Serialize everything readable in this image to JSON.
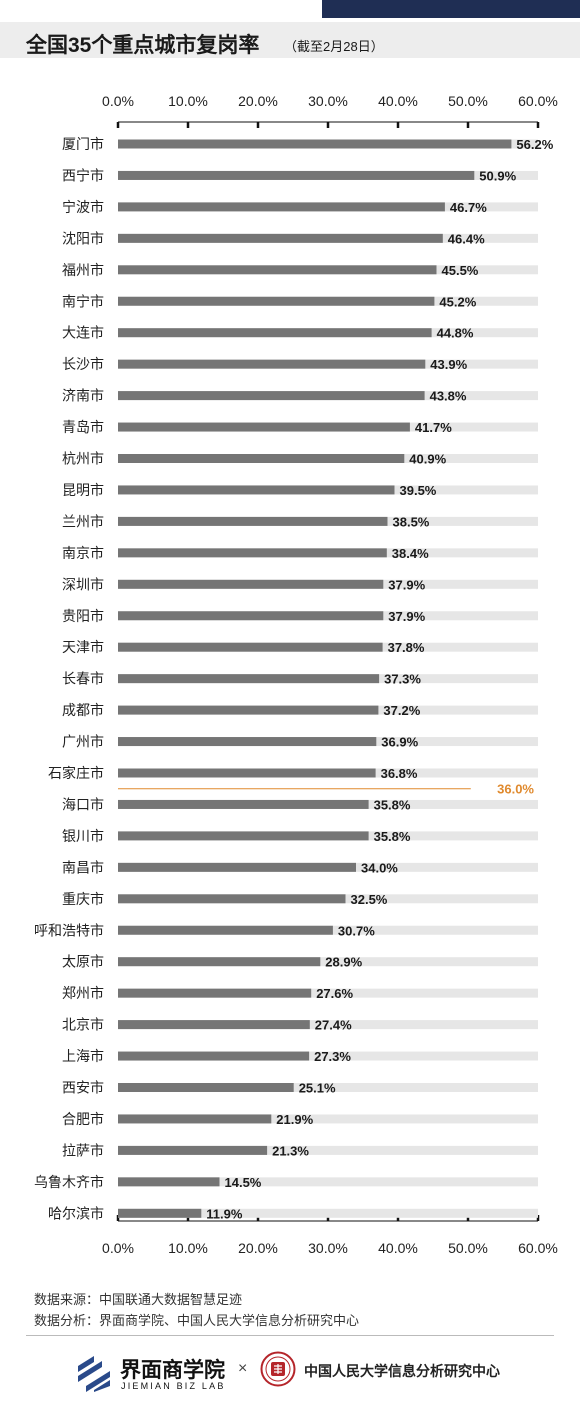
{
  "header": {
    "title": "全国35个重点城市复岗率",
    "subtitle": "（截至2月28日）"
  },
  "chart_data": {
    "type": "bar",
    "orientation": "horizontal",
    "categories": [
      "厦门市",
      "西宁市",
      "宁波市",
      "沈阳市",
      "福州市",
      "南宁市",
      "大连市",
      "长沙市",
      "济南市",
      "青岛市",
      "杭州市",
      "昆明市",
      "兰州市",
      "南京市",
      "深圳市",
      "贵阳市",
      "天津市",
      "长春市",
      "成都市",
      "广州市",
      "石家庄市",
      "海口市",
      "银川市",
      "南昌市",
      "重庆市",
      "呼和浩特市",
      "太原市",
      "郑州市",
      "北京市",
      "上海市",
      "西安市",
      "合肥市",
      "拉萨市",
      "乌鲁木齐市",
      "哈尔滨市"
    ],
    "values": [
      56.2,
      50.9,
      46.7,
      46.4,
      45.5,
      45.2,
      44.8,
      43.9,
      43.8,
      41.7,
      40.9,
      39.5,
      38.5,
      38.4,
      37.9,
      37.9,
      37.8,
      37.3,
      37.2,
      36.9,
      36.8,
      35.8,
      35.8,
      34.0,
      32.5,
      30.7,
      28.9,
      27.6,
      27.4,
      27.3,
      25.1,
      21.9,
      21.3,
      14.5,
      11.9
    ],
    "value_labels": [
      "56.2%",
      "50.9%",
      "46.7%",
      "46.4%",
      "45.5%",
      "45.2%",
      "44.8%",
      "43.9%",
      "43.8%",
      "41.7%",
      "40.9%",
      "39.5%",
      "38.5%",
      "38.4%",
      "37.9%",
      "37.9%",
      "37.8%",
      "37.3%",
      "37.2%",
      "36.9%",
      "36.8%",
      "35.8%",
      "35.8%",
      "34.0%",
      "32.5%",
      "30.7%",
      "28.9%",
      "27.6%",
      "27.4%",
      "27.3%",
      "25.1%",
      "21.9%",
      "21.3%",
      "14.5%",
      "11.9%"
    ],
    "xlim": [
      0,
      60
    ],
    "ticks": [
      0,
      10,
      20,
      30,
      40,
      50,
      60
    ],
    "tick_labels": [
      "0.0%",
      "10.0%",
      "20.0%",
      "30.0%",
      "40.0%",
      "50.0%",
      "60.0%"
    ],
    "reference_line": {
      "value": 36.0,
      "label": "36.0%",
      "color": "#e08a2e"
    },
    "colors": {
      "bar": "#757575",
      "track": "#e6e6e6",
      "axis": "#111111"
    }
  },
  "footer": {
    "source": "数据来源：中国联通大数据智慧足迹",
    "analysis": "数据分析：界面商学院、中国人民大学信息分析研究中心",
    "brand_left": "界面商学院",
    "brand_left_en": "JIEMIAN BIZ LAB",
    "times": "×",
    "brand_right": "中国人民大学信息分析研究中心"
  },
  "colors": {
    "accent_navy": "#1f2e54",
    "title_band": "#ededed",
    "ruc_red": "#b5252a"
  }
}
